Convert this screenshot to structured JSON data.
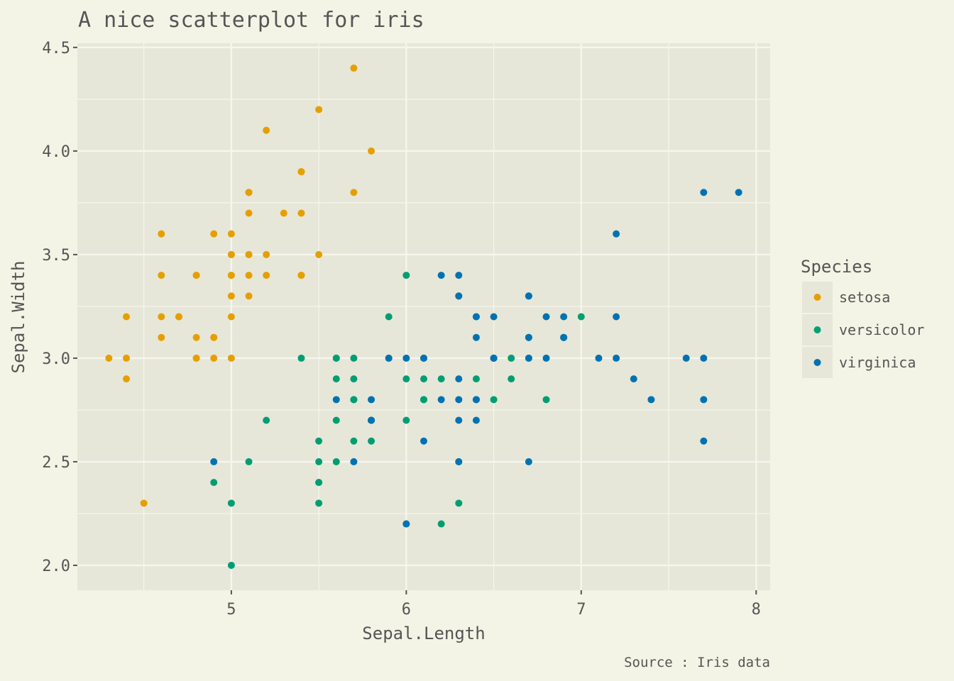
{
  "chart_data": {
    "type": "scatter",
    "title": "A nice scatterplot for iris",
    "xlabel": "Sepal.Length",
    "ylabel": "Sepal.Width",
    "caption": "Source : Iris data",
    "xlim": [
      4.12,
      8.08
    ],
    "ylim": [
      1.88,
      4.52
    ],
    "xticks": [
      5,
      6,
      7,
      8
    ],
    "xtick_labels": [
      "5",
      "6",
      "7",
      "8"
    ],
    "yticks": [
      2.0,
      2.5,
      3.0,
      3.5,
      4.0,
      4.5
    ],
    "ytick_labels": [
      "2.0",
      "2.5",
      "3.0",
      "3.5",
      "4.0",
      "4.5"
    ],
    "grid": true,
    "legend": {
      "title": "Species",
      "position": "right"
    },
    "colors": {
      "panel": "#e6e7d8",
      "background": "#f3f4e5",
      "grid": "#f6f6ef",
      "text": "#555555"
    },
    "series": [
      {
        "name": "setosa",
        "color": "#e69f00",
        "points": [
          [
            5.1,
            3.5
          ],
          [
            4.9,
            3.0
          ],
          [
            4.7,
            3.2
          ],
          [
            4.6,
            3.1
          ],
          [
            5.0,
            3.6
          ],
          [
            5.4,
            3.9
          ],
          [
            4.6,
            3.4
          ],
          [
            5.0,
            3.4
          ],
          [
            4.4,
            2.9
          ],
          [
            4.9,
            3.1
          ],
          [
            5.4,
            3.7
          ],
          [
            4.8,
            3.4
          ],
          [
            4.8,
            3.0
          ],
          [
            4.3,
            3.0
          ],
          [
            5.8,
            4.0
          ],
          [
            5.7,
            4.4
          ],
          [
            5.4,
            3.9
          ],
          [
            5.1,
            3.5
          ],
          [
            5.7,
            3.8
          ],
          [
            5.1,
            3.8
          ],
          [
            5.4,
            3.4
          ],
          [
            5.1,
            3.7
          ],
          [
            4.6,
            3.6
          ],
          [
            5.1,
            3.3
          ],
          [
            4.8,
            3.4
          ],
          [
            5.0,
            3.0
          ],
          [
            5.0,
            3.4
          ],
          [
            5.2,
            3.5
          ],
          [
            5.2,
            3.4
          ],
          [
            4.7,
            3.2
          ],
          [
            4.8,
            3.1
          ],
          [
            5.4,
            3.4
          ],
          [
            5.2,
            4.1
          ],
          [
            5.5,
            4.2
          ],
          [
            4.9,
            3.1
          ],
          [
            5.0,
            3.2
          ],
          [
            5.5,
            3.5
          ],
          [
            4.9,
            3.6
          ],
          [
            4.4,
            3.0
          ],
          [
            5.1,
            3.4
          ],
          [
            5.0,
            3.5
          ],
          [
            4.5,
            2.3
          ],
          [
            4.4,
            3.2
          ],
          [
            5.0,
            3.5
          ],
          [
            5.1,
            3.8
          ],
          [
            4.8,
            3.0
          ],
          [
            5.1,
            3.8
          ],
          [
            4.6,
            3.2
          ],
          [
            5.3,
            3.7
          ],
          [
            5.0,
            3.3
          ]
        ]
      },
      {
        "name": "versicolor",
        "color": "#009e73",
        "points": [
          [
            7.0,
            3.2
          ],
          [
            6.4,
            3.2
          ],
          [
            6.9,
            3.1
          ],
          [
            5.5,
            2.3
          ],
          [
            6.5,
            2.8
          ],
          [
            5.7,
            2.8
          ],
          [
            6.3,
            3.3
          ],
          [
            4.9,
            2.4
          ],
          [
            6.6,
            2.9
          ],
          [
            5.2,
            2.7
          ],
          [
            5.0,
            2.0
          ],
          [
            5.9,
            3.0
          ],
          [
            6.0,
            2.2
          ],
          [
            6.1,
            2.9
          ],
          [
            5.6,
            2.9
          ],
          [
            6.7,
            3.1
          ],
          [
            5.6,
            3.0
          ],
          [
            5.8,
            2.7
          ],
          [
            6.2,
            2.2
          ],
          [
            5.6,
            2.5
          ],
          [
            5.9,
            3.2
          ],
          [
            6.1,
            2.8
          ],
          [
            6.3,
            2.5
          ],
          [
            6.1,
            2.8
          ],
          [
            6.4,
            2.9
          ],
          [
            6.6,
            3.0
          ],
          [
            6.8,
            2.8
          ],
          [
            6.7,
            3.0
          ],
          [
            6.0,
            2.9
          ],
          [
            5.7,
            2.6
          ],
          [
            5.5,
            2.4
          ],
          [
            5.5,
            2.4
          ],
          [
            5.8,
            2.7
          ],
          [
            6.0,
            2.7
          ],
          [
            5.4,
            3.0
          ],
          [
            6.0,
            3.4
          ],
          [
            6.7,
            3.1
          ],
          [
            6.3,
            2.3
          ],
          [
            5.6,
            3.0
          ],
          [
            5.5,
            2.5
          ],
          [
            5.5,
            2.6
          ],
          [
            6.1,
            3.0
          ],
          [
            5.8,
            2.6
          ],
          [
            5.0,
            2.3
          ],
          [
            5.6,
            2.7
          ],
          [
            5.7,
            3.0
          ],
          [
            5.7,
            2.9
          ],
          [
            6.2,
            2.9
          ],
          [
            5.1,
            2.5
          ],
          [
            5.7,
            2.8
          ]
        ]
      },
      {
        "name": "virginica",
        "color": "#0072b2",
        "points": [
          [
            6.3,
            3.3
          ],
          [
            5.8,
            2.7
          ],
          [
            7.1,
            3.0
          ],
          [
            6.3,
            2.9
          ],
          [
            6.5,
            3.0
          ],
          [
            7.6,
            3.0
          ],
          [
            4.9,
            2.5
          ],
          [
            7.3,
            2.9
          ],
          [
            6.7,
            2.5
          ],
          [
            7.2,
            3.6
          ],
          [
            6.5,
            3.2
          ],
          [
            6.4,
            2.7
          ],
          [
            6.8,
            3.0
          ],
          [
            5.7,
            2.5
          ],
          [
            5.8,
            2.8
          ],
          [
            6.4,
            3.2
          ],
          [
            6.5,
            3.0
          ],
          [
            7.7,
            3.8
          ],
          [
            7.7,
            2.6
          ],
          [
            6.0,
            2.2
          ],
          [
            6.9,
            3.2
          ],
          [
            5.6,
            2.8
          ],
          [
            7.7,
            2.8
          ],
          [
            6.3,
            2.7
          ],
          [
            6.7,
            3.3
          ],
          [
            7.2,
            3.2
          ],
          [
            6.2,
            2.8
          ],
          [
            6.1,
            3.0
          ],
          [
            6.4,
            2.8
          ],
          [
            7.2,
            3.0
          ],
          [
            7.4,
            2.8
          ],
          [
            7.9,
            3.8
          ],
          [
            6.4,
            2.8
          ],
          [
            6.3,
            2.8
          ],
          [
            6.1,
            2.6
          ],
          [
            7.7,
            3.0
          ],
          [
            6.3,
            3.4
          ],
          [
            6.4,
            3.1
          ],
          [
            6.0,
            3.0
          ],
          [
            6.9,
            3.1
          ],
          [
            6.7,
            3.1
          ],
          [
            6.9,
            3.1
          ],
          [
            5.8,
            2.7
          ],
          [
            6.8,
            3.2
          ],
          [
            6.7,
            3.3
          ],
          [
            6.7,
            3.0
          ],
          [
            6.3,
            2.5
          ],
          [
            6.5,
            3.0
          ],
          [
            6.2,
            3.4
          ],
          [
            5.9,
            3.0
          ]
        ]
      }
    ]
  }
}
